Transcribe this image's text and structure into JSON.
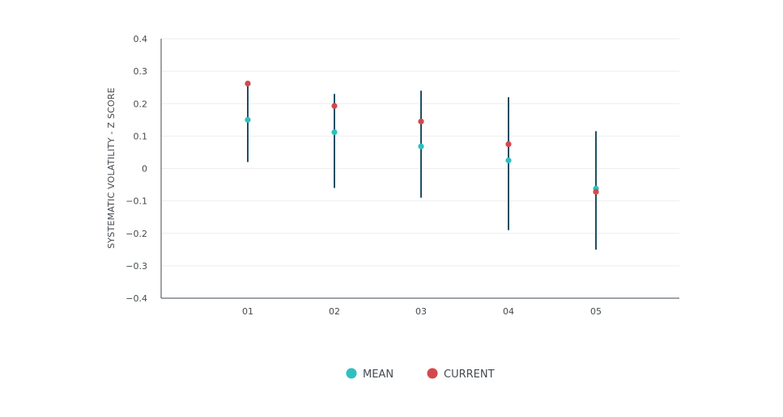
{
  "chart_data": {
    "type": "scatter",
    "ylabel": "SYSTEMATIC VOLATILITY - Z SCORE",
    "ylim": [
      -0.4,
      0.4
    ],
    "yticks": [
      -0.4,
      -0.3,
      -0.2,
      -0.1,
      0,
      0.1,
      0.2,
      0.3,
      0.4
    ],
    "ytick_labels": [
      "−0.4",
      "−0.3",
      "−0.2",
      "−0.1",
      "0",
      "0.1",
      "0.2",
      "0.3",
      "0.4"
    ],
    "categories": [
      "01",
      "02",
      "03",
      "04",
      "05"
    ],
    "ranges": [
      {
        "low": 0.02,
        "high": 0.26
      },
      {
        "low": -0.06,
        "high": 0.23
      },
      {
        "low": -0.09,
        "high": 0.24
      },
      {
        "low": -0.19,
        "high": 0.22
      },
      {
        "low": -0.25,
        "high": 0.115
      }
    ],
    "series": [
      {
        "name": "MEAN",
        "color": "#2fbfbf",
        "values": [
          0.15,
          0.112,
          0.068,
          0.025,
          -0.062
        ]
      },
      {
        "name": "CURRENT",
        "color": "#d4484d",
        "values": [
          0.262,
          0.193,
          0.145,
          0.075,
          -0.072
        ]
      }
    ],
    "range_color": "#1f4e63",
    "grid": true,
    "legend_position": "bottom-center"
  }
}
